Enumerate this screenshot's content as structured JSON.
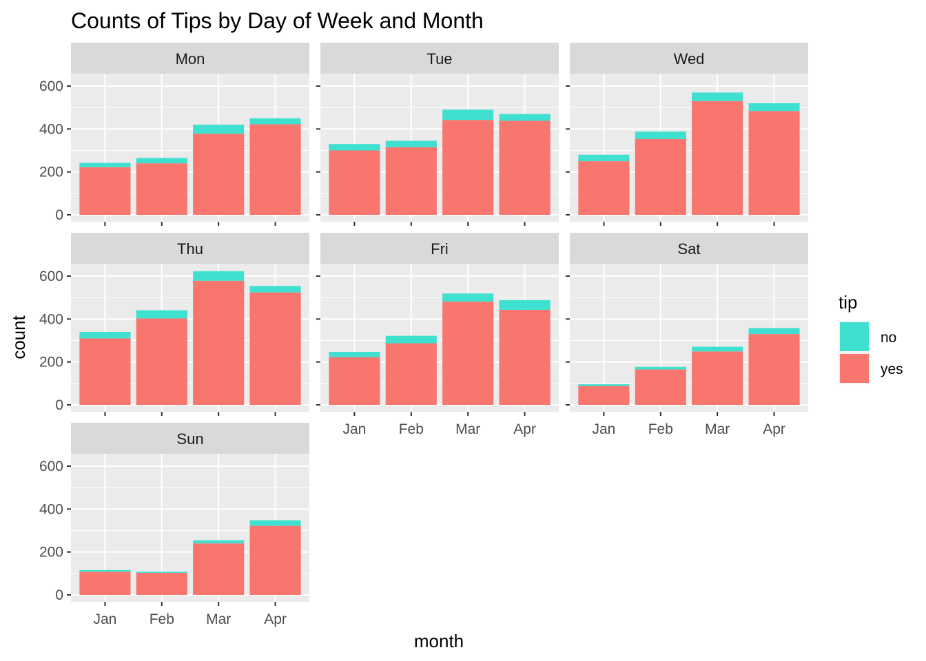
{
  "chart_data": {
    "type": "bar",
    "stacked": true,
    "title": "Counts of Tips by Day of Week and Month",
    "xlabel": "month",
    "ylabel": "count",
    "categories": [
      "Jan",
      "Feb",
      "Mar",
      "Apr"
    ],
    "ylim": [
      0,
      700
    ],
    "yticks": [
      0,
      200,
      400,
      600
    ],
    "legend": {
      "title": "tip",
      "placement": "right",
      "entries": [
        {
          "label": "no",
          "color": "#40E0D0"
        },
        {
          "label": "yes",
          "color": "#F8766D"
        }
      ]
    },
    "colors": {
      "no": "#40E0D0",
      "yes": "#F8766D",
      "panel_bg": "#EBEBEB",
      "strip_bg": "#D9D9D9",
      "grid": "#FFFFFF"
    },
    "grid": true,
    "facets": [
      {
        "label": "Mon",
        "yes": [
          222,
          240,
          378,
          422
        ],
        "no": [
          20,
          25,
          42,
          28
        ]
      },
      {
        "label": "Tue",
        "yes": [
          300,
          315,
          442,
          438
        ],
        "no": [
          30,
          30,
          48,
          32
        ]
      },
      {
        "label": "Wed",
        "yes": [
          250,
          353,
          530,
          484
        ],
        "no": [
          30,
          35,
          40,
          36
        ]
      },
      {
        "label": "Thu",
        "yes": [
          310,
          403,
          578,
          524
        ],
        "no": [
          30,
          38,
          45,
          30
        ]
      },
      {
        "label": "Fri",
        "yes": [
          222,
          287,
          481,
          443
        ],
        "no": [
          25,
          35,
          38,
          45
        ]
      },
      {
        "label": "Sat",
        "yes": [
          88,
          165,
          249,
          330
        ],
        "no": [
          8,
          12,
          22,
          28
        ]
      },
      {
        "label": "Sun",
        "yes": [
          108,
          103,
          240,
          322
        ],
        "no": [
          8,
          5,
          15,
          26
        ]
      }
    ]
  }
}
